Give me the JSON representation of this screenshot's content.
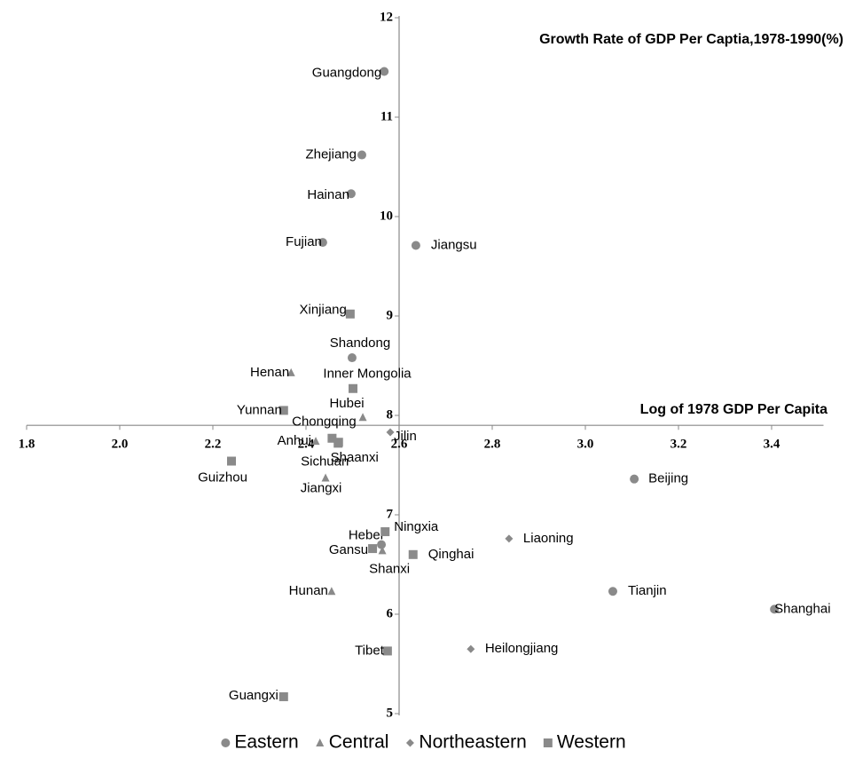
{
  "chart_data": {
    "type": "scatter",
    "x_title": "Log of 1978 GDP Per Capita",
    "y_title": "Growth Rate of GDP Per Captia,1978-1990(%)",
    "xlim": [
      1.8,
      3.5
    ],
    "ylim": [
      5,
      12
    ],
    "xticks": [
      1.8,
      {
        "value": 2,
        "label": "2.0"
      },
      2.2,
      2.4,
      2.6,
      2.8,
      {
        "value": 3,
        "label": "3.0"
      },
      3.2,
      3.4
    ],
    "yticks": [
      5,
      6,
      7,
      8,
      9,
      10,
      11,
      12
    ],
    "x_axis_at": 7.9,
    "y_axis_at": 2.6,
    "legend": "bottom",
    "series": [
      {
        "name": "Eastern",
        "color": "#8a8a8a",
        "marker": "circle",
        "labels": [
          "Guangdong",
          "Zhejiang",
          "Hainan",
          "Fujian",
          "Jiangsu",
          "Shandong",
          "Beijing",
          "Hebei",
          "Tianjin",
          "Shanghai"
        ],
        "x": [
          2.568,
          2.52,
          2.497,
          2.436,
          2.636,
          2.499,
          3.105,
          2.562,
          3.059,
          3.406
        ],
        "y": [
          11.46,
          10.62,
          10.23,
          9.74,
          9.71,
          8.58,
          7.36,
          6.7,
          6.23,
          6.05
        ]
      },
      {
        "name": "Central",
        "color": "#8a8a8a",
        "marker": "triangle",
        "labels": [
          "Henan",
          "Hubei",
          "Anhui",
          "Jiangxi",
          "Shanxi",
          "Hunan"
        ],
        "x": [
          2.368,
          2.522,
          2.421,
          2.442,
          2.564,
          2.455
        ],
        "y": [
          8.43,
          7.98,
          7.74,
          7.37,
          6.64,
          6.23
        ]
      },
      {
        "name": "Northeastern",
        "color": "#8a8a8a",
        "marker": "diamond",
        "labels": [
          "Jilin",
          "Liaoning",
          "Heilongjiang"
        ],
        "x": [
          2.581,
          2.836,
          2.754
        ],
        "y": [
          7.83,
          6.76,
          5.65
        ]
      },
      {
        "name": "Western",
        "color": "#8a8a8a",
        "marker": "square",
        "labels": [
          "Xinjiang",
          "Inner Mongolia",
          "Yunnan",
          "Chongqing",
          "Sichuan",
          "Shaanxi",
          "Guizhou",
          "Ningxia",
          "Gansu",
          "Qinghai",
          "Tibet",
          "Guangxi"
        ],
        "x": [
          2.495,
          2.501,
          2.352,
          2.456,
          2.469,
          2.47,
          2.24,
          2.57,
          2.543,
          2.63,
          2.575,
          2.352
        ],
        "y": [
          9.02,
          8.27,
          8.05,
          7.77,
          7.72,
          7.73,
          7.54,
          6.83,
          6.66,
          6.6,
          5.63,
          5.17
        ]
      }
    ]
  }
}
